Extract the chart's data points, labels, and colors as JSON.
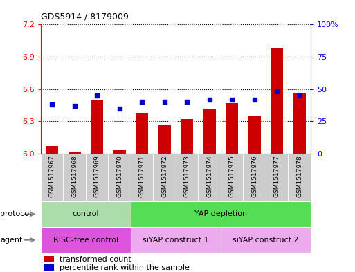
{
  "title": "GDS5914 / 8179009",
  "samples": [
    "GSM1517967",
    "GSM1517968",
    "GSM1517969",
    "GSM1517970",
    "GSM1517971",
    "GSM1517972",
    "GSM1517973",
    "GSM1517974",
    "GSM1517975",
    "GSM1517976",
    "GSM1517977",
    "GSM1517978"
  ],
  "bar_values": [
    6.07,
    6.02,
    6.5,
    6.03,
    6.38,
    6.27,
    6.32,
    6.42,
    6.47,
    6.35,
    6.98,
    6.56
  ],
  "dot_values": [
    38,
    37,
    45,
    35,
    40,
    40,
    40,
    42,
    42,
    42,
    48,
    45
  ],
  "bar_base": 6.0,
  "ylim_left": [
    6.0,
    7.2
  ],
  "ylim_right": [
    0,
    100
  ],
  "yticks_left": [
    6.0,
    6.3,
    6.6,
    6.9,
    7.2
  ],
  "yticks_right": [
    0,
    25,
    50,
    75,
    100
  ],
  "bar_color": "#cc0000",
  "dot_color": "#0000cc",
  "plot_bg_color": "#ffffff",
  "sample_bg_color": "#cccccc",
  "protocol_control_color": "#aaddaa",
  "protocol_yap_color": "#55dd55",
  "agent_risc_color": "#dd55dd",
  "agent_siyap_color": "#eeaaee",
  "protocol_control_label": "control",
  "protocol_yap_label": "YAP depletion",
  "agent_risc_label": "RISC-free control",
  "agent_siyap1_label": "siYAP construct 1",
  "agent_siyap2_label": "siYAP construct 2",
  "protocol_row_label": "protocol",
  "agent_row_label": "agent",
  "legend_bar_label": "transformed count",
  "legend_dot_label": "percentile rank within the sample"
}
